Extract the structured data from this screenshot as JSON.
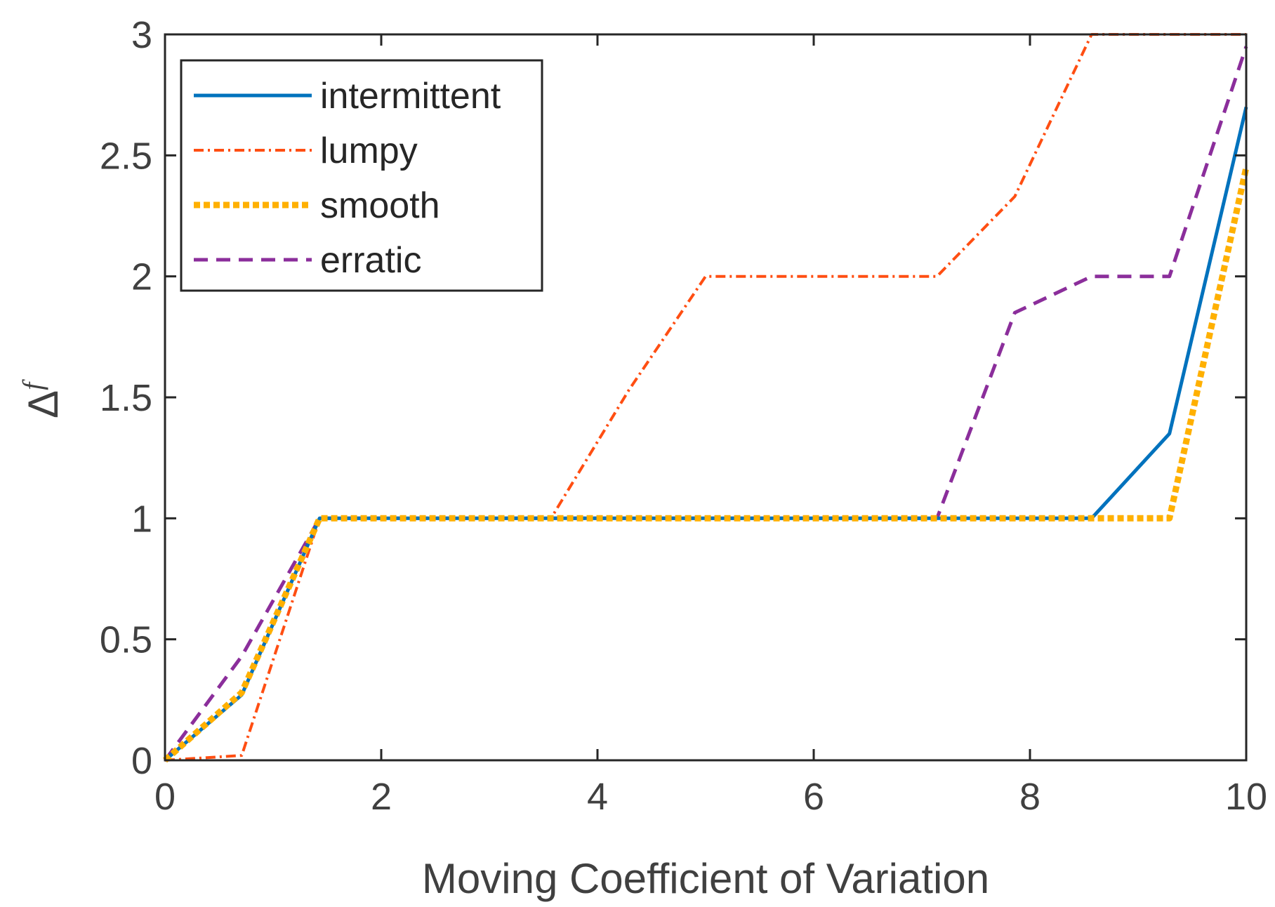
{
  "chart_data": {
    "type": "line",
    "title": "",
    "xlabel": "Moving Coefficient of Variation",
    "ylabel": "Δ",
    "ylabel_subscript": "f",
    "xlim": [
      0,
      10
    ],
    "ylim": [
      0,
      3
    ],
    "xticks": [
      0,
      2,
      4,
      6,
      8,
      10
    ],
    "yticks": [
      0,
      0.5,
      1,
      1.5,
      2,
      2.5,
      3
    ],
    "xtick_labels": [
      "0",
      "2",
      "4",
      "6",
      "8",
      "10"
    ],
    "ytick_labels": [
      "0",
      "0.5",
      "1",
      "1.5",
      "2",
      "2.5",
      "3"
    ],
    "grid": false,
    "legend_position": "top-left",
    "series": [
      {
        "name": "intermittent",
        "color": "#0072BD",
        "style": "solid",
        "x": [
          0,
          0.71,
          1.43,
          2.14,
          2.86,
          3.57,
          4.29,
          5.0,
          5.71,
          6.43,
          7.14,
          7.86,
          8.57,
          9.29,
          10.0
        ],
        "y": [
          0,
          0.27,
          1.0,
          1.0,
          1.0,
          1.0,
          1.0,
          1.0,
          1.0,
          1.0,
          1.0,
          1.0,
          1.0,
          1.35,
          2.7
        ]
      },
      {
        "name": "lumpy",
        "color": "#FF4E12",
        "style": "dashdot",
        "x": [
          0,
          0.71,
          1.43,
          2.14,
          2.86,
          3.57,
          4.29,
          5.0,
          5.71,
          6.43,
          7.14,
          7.86,
          8.57,
          9.29,
          10.0
        ],
        "y": [
          0,
          0.02,
          1.0,
          1.0,
          1.0,
          1.0,
          1.53,
          2.0,
          2.0,
          2.0,
          2.0,
          2.33,
          3.0,
          3.0,
          3.0
        ]
      },
      {
        "name": "smooth",
        "color": "#FFB000",
        "style": "dotted",
        "x": [
          0,
          0.71,
          1.43,
          2.14,
          2.86,
          3.57,
          4.29,
          5.0,
          5.71,
          6.43,
          7.14,
          7.86,
          8.57,
          9.29,
          10.0
        ],
        "y": [
          0,
          0.28,
          1.0,
          1.0,
          1.0,
          1.0,
          1.0,
          1.0,
          1.0,
          1.0,
          1.0,
          1.0,
          1.0,
          1.0,
          2.45
        ]
      },
      {
        "name": "erratic",
        "color": "#8B2E9B",
        "style": "dashed",
        "x": [
          0,
          0.71,
          1.43,
          2.14,
          2.86,
          3.57,
          4.29,
          5.0,
          5.71,
          6.43,
          7.14,
          7.86,
          8.57,
          9.29,
          10.0
        ],
        "y": [
          0,
          0.43,
          1.0,
          1.0,
          1.0,
          1.0,
          1.0,
          1.0,
          1.0,
          1.0,
          1.0,
          1.85,
          2.0,
          2.0,
          2.95
        ]
      }
    ]
  }
}
